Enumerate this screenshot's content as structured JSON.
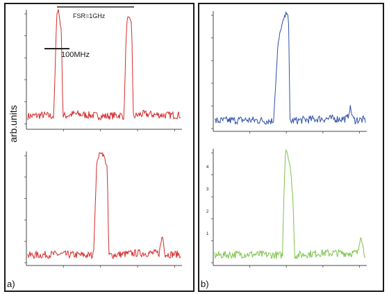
{
  "panels": {
    "a": {
      "label": "a)"
    },
    "b": {
      "label": "b)"
    }
  },
  "ylabel": "arb.units",
  "annotations": {
    "fsr": "FSR=1GHz",
    "linewidth": "100MHz"
  },
  "colors": {
    "red": "#d42a2a",
    "blue": "#2f4fa8",
    "green": "#7cc24a",
    "axis": "#444444",
    "frame": "#1a1a1a"
  },
  "chart_data": [
    {
      "type": "line",
      "panel": "a-top",
      "series": [
        {
          "color": "#d42a2a",
          "x": [
            0,
            0.1,
            0.17,
            0.18,
            0.19,
            0.2,
            0.22,
            0.23,
            0.3,
            0.5,
            0.6,
            0.63,
            0.64,
            0.65,
            0.66,
            0.68,
            0.69,
            0.75,
            0.9,
            1.0
          ],
          "y": [
            0.03,
            0.04,
            0.03,
            0.5,
            0.98,
            1.0,
            0.8,
            0.03,
            0.05,
            0.03,
            0.04,
            0.03,
            0.6,
            0.92,
            0.92,
            0.88,
            0.03,
            0.05,
            0.04,
            0.04
          ]
        }
      ],
      "grid": false
    },
    {
      "type": "line",
      "panel": "a-bottom",
      "series": [
        {
          "color": "#d42a2a",
          "x": [
            0,
            0.2,
            0.4,
            0.43,
            0.45,
            0.46,
            0.48,
            0.5,
            0.52,
            0.53,
            0.7,
            0.86,
            0.88,
            0.9,
            1.0
          ],
          "y": [
            0.03,
            0.04,
            0.03,
            0.03,
            0.85,
            0.95,
            1.0,
            0.95,
            0.85,
            0.03,
            0.05,
            0.05,
            0.22,
            0.04,
            0.04
          ]
        }
      ],
      "grid": false
    },
    {
      "type": "line",
      "panel": "b-top",
      "series": [
        {
          "color": "#2f4fa8",
          "x": [
            0,
            0.2,
            0.39,
            0.4,
            0.42,
            0.44,
            0.46,
            0.48,
            0.49,
            0.5,
            0.7,
            0.88,
            0.9,
            0.92,
            1.0
          ],
          "y": [
            0.03,
            0.04,
            0.03,
            0.25,
            0.7,
            0.85,
            0.93,
            1.0,
            0.95,
            0.03,
            0.05,
            0.05,
            0.15,
            0.04,
            0.04
          ]
        }
      ],
      "grid": false
    },
    {
      "type": "line",
      "panel": "b-bottom",
      "series": [
        {
          "color": "#7cc24a",
          "x": [
            0,
            0.2,
            0.45,
            0.46,
            0.47,
            0.48,
            0.5,
            0.52,
            0.53,
            0.7,
            0.95,
            0.97,
            0.99,
            1.0
          ],
          "y": [
            0.03,
            0.04,
            0.03,
            0.6,
            1.0,
            0.98,
            0.85,
            0.55,
            0.03,
            0.05,
            0.05,
            0.22,
            0.06,
            0.04
          ]
        }
      ],
      "yticks": [
        "4",
        "3",
        "2",
        "1"
      ],
      "grid": false
    }
  ]
}
